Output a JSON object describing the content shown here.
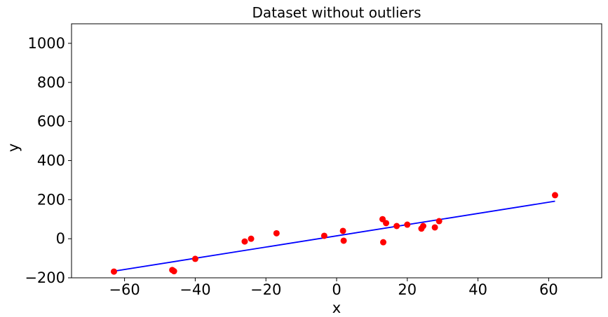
{
  "chart_data": {
    "type": "scatter",
    "title": "Dataset without outliers",
    "xlabel": "x",
    "ylabel": "y",
    "xlim": [
      -75,
      75
    ],
    "ylim": [
      -200,
      1100
    ],
    "xticks": [
      -60,
      -40,
      -20,
      0,
      20,
      40,
      60
    ],
    "xtick_labels": [
      "−60",
      "−40",
      "−20",
      "0",
      "20",
      "40",
      "60"
    ],
    "yticks": [
      -200,
      0,
      200,
      400,
      600,
      800,
      1000
    ],
    "ytick_labels": [
      "−200",
      "0",
      "200",
      "400",
      "600",
      "800",
      "1000"
    ],
    "grid": false,
    "series": [
      {
        "kind": "scatter",
        "color": "#ff0000",
        "points": [
          {
            "x": -63,
            "y": -168
          },
          {
            "x": -46.5,
            "y": -160
          },
          {
            "x": -46,
            "y": -166
          },
          {
            "x": -40,
            "y": -103
          },
          {
            "x": -26,
            "y": -14
          },
          {
            "x": -24.2,
            "y": 0
          },
          {
            "x": -17,
            "y": 28
          },
          {
            "x": -3.5,
            "y": 15
          },
          {
            "x": 1.8,
            "y": 40
          },
          {
            "x": 2,
            "y": -10
          },
          {
            "x": 13,
            "y": 100
          },
          {
            "x": 13.2,
            "y": -18
          },
          {
            "x": 14,
            "y": 80
          },
          {
            "x": 17,
            "y": 65
          },
          {
            "x": 20,
            "y": 72
          },
          {
            "x": 24,
            "y": 52
          },
          {
            "x": 24.5,
            "y": 65
          },
          {
            "x": 27.8,
            "y": 58
          },
          {
            "x": 29,
            "y": 90
          },
          {
            "x": 61.8,
            "y": 223
          }
        ]
      },
      {
        "kind": "line",
        "color": "#0000ff",
        "points": [
          {
            "x": -63,
            "y": -166
          },
          {
            "x": 61.8,
            "y": 192
          }
        ]
      }
    ]
  }
}
